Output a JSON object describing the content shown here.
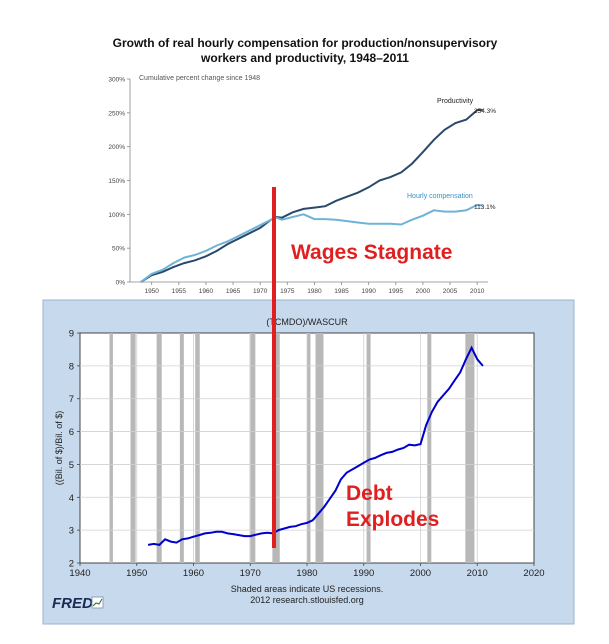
{
  "top_chart": {
    "title_line1": "Growth of real hourly compensation for production/nonsupervisory",
    "title_line2": "workers and productivity, 1948–2011",
    "ylabel": "Cumulative percent change since 1948",
    "productivity_label": "Productivity",
    "productivity_end_label": "254.3%",
    "compensation_label": "Hourly compensation",
    "compensation_end_label": "113.1%",
    "overlay_text": "Wages Stagnate"
  },
  "bottom_chart": {
    "title": "(TCMDO)/WASCUR",
    "ylabel": "((Bil. of $)/Bil. of $)",
    "footnote_line1": "Shaded areas indicate US recessions.",
    "footnote_line2": "2012 research.stlouisfed.org",
    "logo_text": "FRED",
    "overlay_line1": "Debt",
    "overlay_line2": "Explodes"
  },
  "chart_data": [
    {
      "type": "line",
      "title": "Growth of real hourly compensation for production/nonsupervisory workers and productivity, 1948–2011",
      "ylabel": "Cumulative percent change since 1948",
      "ylim": [
        0,
        300
      ],
      "yticks": [
        "0%",
        "50%",
        "100%",
        "150%",
        "200%",
        "250%",
        "300%"
      ],
      "xticks": [
        "1950",
        "1955",
        "1960",
        "1965",
        "1970",
        "1975",
        "1980",
        "1985",
        "1990",
        "1995",
        "2000",
        "2005",
        "2010"
      ],
      "xlim": [
        1946,
        2012
      ],
      "series": [
        {
          "name": "Productivity",
          "color": "#2b4a6b",
          "x": [
            1948,
            1950,
            1952,
            1954,
            1956,
            1958,
            1960,
            1962,
            1964,
            1966,
            1968,
            1970,
            1972,
            1973,
            1974,
            1976,
            1978,
            1980,
            1982,
            1984,
            1986,
            1988,
            1990,
            1992,
            1994,
            1996,
            1998,
            2000,
            2002,
            2004,
            2006,
            2008,
            2010,
            2011
          ],
          "y": [
            0,
            10,
            15,
            22,
            28,
            32,
            38,
            46,
            56,
            64,
            72,
            80,
            92,
            96,
            95,
            103,
            108,
            110,
            112,
            120,
            126,
            132,
            140,
            150,
            155,
            162,
            175,
            192,
            210,
            225,
            235,
            240,
            254,
            254.3
          ]
        },
        {
          "name": "Hourly compensation",
          "color": "#6fb3d9",
          "x": [
            1948,
            1950,
            1952,
            1954,
            1956,
            1958,
            1960,
            1962,
            1964,
            1966,
            1968,
            1970,
            1972,
            1973,
            1974,
            1976,
            1978,
            1980,
            1982,
            1984,
            1986,
            1988,
            1990,
            1992,
            1994,
            1996,
            1998,
            2000,
            2002,
            2004,
            2006,
            2008,
            2010,
            2011
          ],
          "y": [
            0,
            12,
            18,
            28,
            36,
            40,
            46,
            54,
            60,
            68,
            76,
            84,
            92,
            95,
            92,
            96,
            100,
            93,
            93,
            92,
            90,
            88,
            86,
            86,
            86,
            85,
            92,
            98,
            106,
            104,
            104,
            106,
            114,
            113.1
          ]
        }
      ]
    },
    {
      "type": "line",
      "title": "(TCMDO)/WASCUR",
      "ylabel": "((Bil. of $)/Bil. of $)",
      "ylim": [
        2,
        9
      ],
      "yticks": [
        2,
        3,
        4,
        5,
        6,
        7,
        8,
        9
      ],
      "xlim": [
        1940,
        2020
      ],
      "xticks": [
        1940,
        1950,
        1960,
        1970,
        1980,
        1990,
        2000,
        2010,
        2020
      ],
      "grid": true,
      "recessions": [
        [
          1945.2,
          1945.8
        ],
        [
          1948.9,
          1949.8
        ],
        [
          1953.5,
          1954.4
        ],
        [
          1957.6,
          1958.3
        ],
        [
          1960.3,
          1961.1
        ],
        [
          1969.9,
          1970.9
        ],
        [
          1973.9,
          1975.2
        ],
        [
          1980.0,
          1980.6
        ],
        [
          1981.5,
          1982.9
        ],
        [
          1990.5,
          1991.2
        ],
        [
          2001.2,
          2001.9
        ],
        [
          2007.9,
          2009.5
        ]
      ],
      "series": [
        {
          "name": "(TCMDO)/WASCUR",
          "color": "#0000cc",
          "x": [
            1952,
            1953,
            1954,
            1955,
            1956,
            1957,
            1958,
            1959,
            1960,
            1961,
            1962,
            1963,
            1964,
            1965,
            1966,
            1967,
            1968,
            1969,
            1970,
            1971,
            1972,
            1973,
            1974,
            1975,
            1976,
            1977,
            1978,
            1979,
            1980,
            1981,
            1982,
            1983,
            1984,
            1985,
            1986,
            1987,
            1988,
            1989,
            1990,
            1991,
            1992,
            1993,
            1994,
            1995,
            1996,
            1997,
            1998,
            1999,
            2000,
            2001,
            2002,
            2003,
            2004,
            2005,
            2006,
            2007,
            2008,
            2009,
            2010,
            2011
          ],
          "y": [
            2.55,
            2.58,
            2.55,
            2.72,
            2.65,
            2.62,
            2.72,
            2.75,
            2.8,
            2.85,
            2.9,
            2.92,
            2.95,
            2.95,
            2.9,
            2.88,
            2.85,
            2.82,
            2.82,
            2.86,
            2.9,
            2.92,
            2.9,
            3.0,
            3.05,
            3.1,
            3.12,
            3.18,
            3.22,
            3.3,
            3.5,
            3.7,
            3.95,
            4.2,
            4.55,
            4.75,
            4.85,
            4.95,
            5.05,
            5.15,
            5.2,
            5.28,
            5.35,
            5.38,
            5.45,
            5.5,
            5.6,
            5.58,
            5.62,
            6.2,
            6.6,
            6.9,
            7.1,
            7.3,
            7.55,
            7.8,
            8.2,
            8.55,
            8.2,
            8.0
          ]
        }
      ]
    }
  ]
}
